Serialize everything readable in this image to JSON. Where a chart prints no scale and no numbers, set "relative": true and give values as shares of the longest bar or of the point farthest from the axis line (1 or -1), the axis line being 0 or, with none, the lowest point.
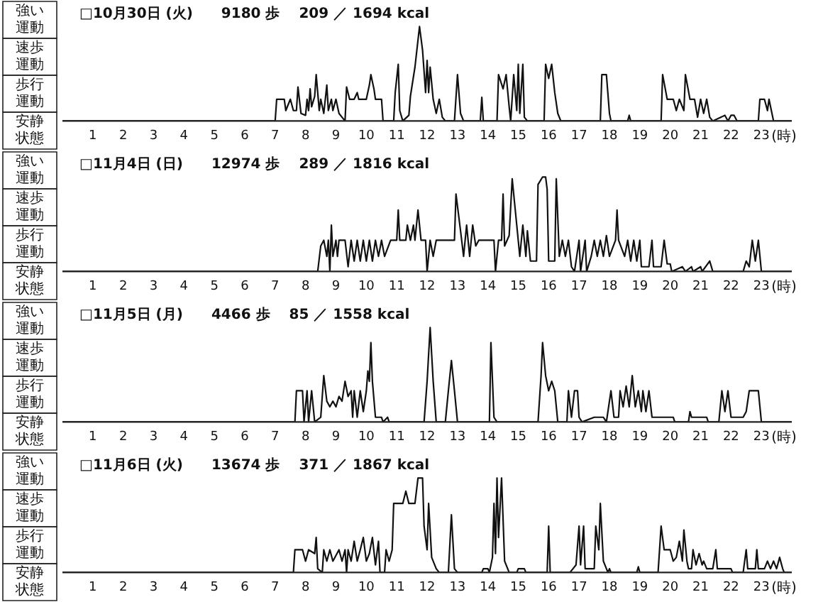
{
  "chart_data": [
    {
      "type": "line",
      "relative": true,
      "title": "□10月30日 (火)　　9180 歩　 209 ／ 1694 kcal",
      "xlabel": "(時)",
      "annotations": [
        "強い運動",
        "速歩運動",
        "歩行運動",
        "安静状態"
      ],
      "color": "#111111",
      "marker": "none",
      "line_style": "solid",
      "xlim": [
        0,
        24
      ],
      "xticks": [
        1,
        2,
        3,
        4,
        5,
        6,
        7,
        8,
        9,
        10,
        11,
        12,
        13,
        14,
        15,
        16,
        17,
        18,
        19,
        20,
        21,
        22,
        23
      ],
      "x": [
        0,
        7.0,
        7.05,
        7.3,
        7.35,
        7.5,
        7.6,
        7.7,
        7.75,
        7.85,
        8.0,
        8.05,
        8.1,
        8.15,
        8.2,
        8.3,
        8.35,
        8.45,
        8.5,
        8.6,
        8.7,
        8.75,
        8.85,
        8.9,
        9.0,
        9.1,
        9.2,
        9.3,
        9.35,
        9.45,
        9.6,
        9.7,
        9.75,
        10.0,
        10.1,
        10.15,
        10.25,
        10.3,
        10.5,
        10.55,
        10.9,
        10.95,
        11.05,
        11.1,
        11.2,
        11.4,
        11.45,
        11.6,
        11.75,
        11.85,
        11.95,
        12.0,
        12.05,
        12.1,
        12.2,
        12.3,
        12.4,
        12.5,
        12.6,
        12.9,
        13.0,
        13.1,
        13.2,
        13.75,
        13.8,
        13.85,
        14.3,
        14.35,
        14.5,
        14.6,
        14.7,
        14.75,
        14.85,
        14.95,
        15.0,
        15.05,
        15.15,
        15.2,
        15.3,
        15.85,
        15.9,
        16.0,
        16.1,
        16.2,
        16.3,
        16.4,
        17.7,
        17.75,
        17.9,
        18.0,
        18.05,
        18.6,
        18.65,
        18.7,
        19.7,
        19.75,
        19.9,
        20.1,
        20.2,
        20.3,
        20.45,
        20.5,
        20.65,
        20.8,
        20.9,
        21.0,
        21.1,
        21.2,
        21.3,
        21.4,
        21.8,
        21.9,
        22.0,
        22.1,
        22.2,
        22.9,
        22.95,
        23.1,
        23.2,
        23.25,
        23.4,
        24
      ],
      "values": [
        0,
        0,
        0.23,
        0.23,
        0.11,
        0.23,
        0.11,
        0.11,
        0.36,
        0.08,
        0.06,
        0.23,
        0.11,
        0.34,
        0.15,
        0.26,
        0.49,
        0.11,
        0.23,
        0.08,
        0.38,
        0.11,
        0.23,
        0.11,
        0.23,
        0.08,
        0.04,
        0,
        0.36,
        0.23,
        0.23,
        0.3,
        0.23,
        0.23,
        0.38,
        0.49,
        0.34,
        0.23,
        0.23,
        0,
        0,
        0.3,
        0.6,
        0.11,
        0,
        0.06,
        0.26,
        0.57,
        1,
        0.75,
        0.3,
        0.64,
        0.3,
        0.57,
        0.23,
        0.08,
        0.23,
        0.04,
        0,
        0,
        0.49,
        0.08,
        0,
        0,
        0.25,
        0,
        0,
        0.49,
        0.34,
        0.49,
        0.15,
        0,
        0.49,
        0.11,
        0.6,
        0.08,
        0.6,
        0.04,
        0,
        0,
        0.6,
        0.45,
        0.6,
        0.3,
        0.08,
        0,
        0,
        0.49,
        0.49,
        0.08,
        0,
        0,
        0.06,
        0,
        0,
        0.49,
        0.23,
        0.23,
        0.11,
        0.23,
        0.11,
        0.49,
        0.23,
        0.23,
        0.04,
        0.23,
        0.08,
        0.23,
        0.04,
        0,
        0.06,
        0,
        0.06,
        0.06,
        0,
        0,
        0.23,
        0.23,
        0.11,
        0.23,
        0,
        0
      ]
    },
    {
      "type": "line",
      "relative": true,
      "title": "□11月4日 (日)　　12974 歩　 289 ／ 1816 kcal",
      "xlabel": "(時)",
      "annotations": [
        "強い運動",
        "速歩運動",
        "歩行運動",
        "安静状態"
      ],
      "color": "#111111",
      "marker": "none",
      "line_style": "solid",
      "xlim": [
        0,
        24
      ],
      "xticks": [
        1,
        2,
        3,
        4,
        5,
        6,
        7,
        8,
        9,
        10,
        11,
        12,
        13,
        14,
        15,
        16,
        17,
        18,
        19,
        20,
        21,
        22,
        23
      ],
      "x": [
        0,
        8.4,
        8.5,
        8.6,
        8.7,
        8.75,
        8.8,
        8.85,
        8.9,
        9.0,
        9.05,
        9.1,
        9.3,
        9.4,
        9.5,
        9.6,
        9.7,
        9.8,
        9.9,
        10.0,
        10.1,
        10.2,
        10.3,
        10.4,
        10.5,
        10.6,
        10.8,
        11.0,
        11.05,
        11.1,
        11.3,
        11.35,
        11.45,
        11.55,
        11.6,
        11.7,
        11.8,
        11.95,
        12.0,
        12.1,
        12.2,
        12.3,
        12.9,
        12.95,
        13.1,
        13.2,
        13.3,
        13.4,
        13.5,
        13.6,
        13.7,
        14.2,
        14.25,
        14.35,
        14.45,
        14.5,
        14.55,
        14.7,
        14.8,
        14.95,
        15.05,
        15.15,
        15.25,
        15.3,
        15.4,
        15.6,
        15.65,
        15.8,
        15.9,
        15.95,
        16.0,
        16.2,
        16.25,
        16.35,
        16.45,
        16.55,
        16.65,
        16.75,
        16.85,
        17.0,
        17.05,
        17.2,
        17.25,
        17.4,
        17.5,
        17.6,
        17.7,
        17.8,
        17.9,
        18.0,
        18.2,
        18.25,
        18.3,
        18.5,
        18.6,
        18.7,
        18.8,
        18.9,
        19.0,
        19.05,
        19.3,
        19.4,
        19.45,
        19.7,
        19.8,
        19.9,
        20.0,
        20.05,
        20.4,
        20.5,
        20.7,
        20.75,
        21.0,
        21.05,
        21.3,
        21.4,
        22.4,
        22.5,
        22.6,
        22.7,
        22.8,
        22.9,
        23.0,
        24
      ],
      "values": [
        0,
        0,
        0.27,
        0.33,
        0.16,
        0.33,
        0,
        0.49,
        0.16,
        0.33,
        0.16,
        0.33,
        0.33,
        0.05,
        0.33,
        0.11,
        0.33,
        0.11,
        0.33,
        0.11,
        0.33,
        0.11,
        0.33,
        0.16,
        0.33,
        0.16,
        0.33,
        0.33,
        0.65,
        0.33,
        0.33,
        0.49,
        0.33,
        0.49,
        0.33,
        0.65,
        0.33,
        0.33,
        0,
        0.33,
        0.16,
        0.33,
        0.33,
        0.82,
        0.43,
        0.16,
        0.49,
        0.16,
        0.49,
        0.27,
        0.33,
        0.33,
        0,
        0.33,
        0.33,
        0.82,
        0.27,
        0.38,
        0.98,
        0.49,
        0.16,
        0.49,
        0.16,
        0.43,
        0.11,
        0.11,
        0.92,
        1,
        1,
        0.87,
        0.11,
        0.11,
        0.98,
        0.16,
        0.33,
        0.16,
        0.33,
        0.05,
        0,
        0.33,
        0,
        0.33,
        0,
        0.16,
        0.33,
        0.16,
        0.33,
        0.16,
        0.38,
        0.16,
        0.33,
        0.65,
        0.33,
        0.16,
        0.33,
        0.11,
        0.33,
        0.11,
        0.33,
        0.05,
        0.05,
        0.33,
        0.05,
        0.05,
        0.33,
        0.08,
        0.08,
        0,
        0.05,
        0,
        0.05,
        0,
        0.05,
        0,
        0.11,
        0,
        0,
        0.11,
        0.05,
        0.33,
        0.11,
        0.33,
        0,
        0
      ]
    },
    {
      "type": "line",
      "relative": true,
      "title": "□11月5日 (月)　　4466 歩　 85 ／ 1558 kcal",
      "xlabel": "(時)",
      "annotations": [
        "強い運動",
        "速歩運動",
        "歩行運動",
        "安静状態"
      ],
      "color": "#111111",
      "marker": "none",
      "line_style": "solid",
      "xlim": [
        0,
        24
      ],
      "xticks": [
        1,
        2,
        3,
        4,
        5,
        6,
        7,
        8,
        9,
        10,
        11,
        12,
        13,
        14,
        15,
        16,
        17,
        18,
        19,
        20,
        21,
        22,
        23
      ],
      "x": [
        0,
        7.65,
        7.7,
        7.9,
        7.95,
        8.05,
        8.1,
        8.2,
        8.3,
        8.5,
        8.6,
        8.7,
        8.8,
        8.9,
        9.0,
        9.1,
        9.2,
        9.3,
        9.4,
        9.5,
        9.55,
        9.6,
        9.7,
        9.8,
        9.9,
        10.0,
        10.05,
        10.1,
        10.15,
        10.2,
        10.3,
        10.5,
        10.55,
        10.7,
        10.75,
        11.9,
        12.0,
        12.1,
        12.2,
        12.3,
        12.6,
        12.7,
        12.8,
        12.9,
        13.0,
        14.05,
        14.1,
        14.2,
        14.3,
        15.65,
        15.75,
        15.8,
        15.9,
        16.0,
        16.1,
        16.2,
        16.3,
        16.6,
        16.65,
        16.75,
        16.85,
        16.95,
        17.0,
        17.1,
        17.5,
        17.8,
        17.9,
        18.05,
        18.15,
        18.3,
        18.35,
        18.45,
        18.55,
        18.65,
        18.75,
        18.85,
        18.95,
        19.05,
        19.1,
        19.2,
        19.3,
        19.4,
        19.6,
        20.1,
        20.15,
        20.6,
        20.65,
        20.7,
        21.2,
        21.25,
        21.6,
        21.7,
        21.8,
        21.9,
        22.0,
        22.4,
        22.5,
        22.6,
        22.9,
        23.0,
        24
      ],
      "values": [
        0,
        0,
        0.33,
        0.33,
        0,
        0.33,
        0,
        0.33,
        0,
        0.05,
        0.49,
        0.22,
        0.16,
        0.22,
        0.16,
        0.27,
        0.22,
        0.43,
        0.27,
        0.33,
        0.05,
        0.33,
        0.05,
        0.33,
        0.11,
        0.33,
        0.54,
        0.43,
        0.84,
        0.43,
        0.05,
        0.05,
        0,
        0.05,
        0,
        0,
        0.43,
        1,
        0.43,
        0,
        0,
        0.33,
        0.65,
        0.33,
        0,
        0,
        0.84,
        0.05,
        0,
        0,
        0.49,
        0.84,
        0.49,
        0.33,
        0.43,
        0.33,
        0,
        0,
        0.33,
        0.05,
        0.33,
        0.33,
        0.05,
        0,
        0.05,
        0.05,
        0,
        0.33,
        0.05,
        0.05,
        0.33,
        0.16,
        0.38,
        0.16,
        0.49,
        0.16,
        0.33,
        0.11,
        0.33,
        0.11,
        0.33,
        0.05,
        0.05,
        0.05,
        0,
        0,
        0.11,
        0.05,
        0.05,
        0,
        0,
        0.33,
        0.11,
        0.33,
        0.05,
        0.05,
        0.11,
        0.33,
        0.33,
        0,
        0
      ]
    },
    {
      "type": "line",
      "relative": true,
      "title": "□11月6日 (火)　　13674 歩　 371 ／ 1867 kcal",
      "xlabel": "(時)",
      "annotations": [
        "強い運動",
        "速歩運動",
        "歩行運動",
        "安静状態"
      ],
      "color": "#111111",
      "marker": "none",
      "line_style": "solid",
      "xlim": [
        0,
        24
      ],
      "xticks": [
        1,
        2,
        3,
        4,
        5,
        6,
        7,
        8,
        9,
        10,
        11,
        12,
        13,
        14,
        15,
        16,
        17,
        18,
        19,
        20,
        21,
        22,
        23
      ],
      "x": [
        0,
        7.6,
        7.65,
        7.9,
        8.0,
        8.1,
        8.3,
        8.35,
        8.4,
        8.55,
        8.6,
        8.7,
        8.8,
        8.9,
        9.1,
        9.2,
        9.3,
        9.35,
        9.4,
        9.5,
        9.6,
        9.7,
        9.8,
        9.9,
        10.0,
        10.1,
        10.2,
        10.3,
        10.4,
        10.45,
        10.6,
        10.65,
        10.75,
        10.85,
        10.9,
        11.2,
        11.3,
        11.4,
        11.6,
        11.7,
        11.85,
        11.9,
        12.0,
        12.05,
        12.15,
        12.3,
        12.4,
        12.7,
        12.8,
        12.9,
        13.0,
        13.8,
        13.85,
        14.0,
        14.05,
        14.15,
        14.2,
        14.25,
        14.3,
        14.35,
        14.45,
        14.55,
        14.7,
        14.95,
        15.0,
        15.2,
        15.25,
        15.95,
        16.0,
        16.05,
        16.7,
        16.8,
        16.9,
        17.0,
        17.05,
        17.15,
        17.2,
        17.5,
        17.55,
        17.65,
        17.7,
        17.8,
        17.95,
        18.0,
        18.05,
        18.9,
        18.95,
        19.0,
        19.6,
        19.7,
        19.8,
        20.0,
        20.1,
        20.2,
        20.3,
        20.4,
        20.45,
        20.55,
        20.6,
        20.7,
        20.75,
        20.85,
        20.95,
        21.05,
        21.1,
        21.2,
        21.4,
        21.5,
        21.55,
        22.0,
        22.05,
        22.4,
        22.5,
        22.55,
        22.8,
        22.85,
        22.9,
        23.1,
        23.2,
        23.3,
        23.4,
        23.5,
        23.6,
        23.7,
        23.75,
        24
      ],
      "values": [
        0,
        0,
        0.24,
        0.24,
        0.12,
        0.24,
        0.2,
        0.37,
        0.04,
        0,
        0.24,
        0.12,
        0.24,
        0.12,
        0.24,
        0.12,
        0.24,
        0,
        0.24,
        0.12,
        0.33,
        0.12,
        0.24,
        0.37,
        0.12,
        0.2,
        0.37,
        0.08,
        0.33,
        0,
        0,
        0.24,
        0.12,
        0.24,
        0.73,
        0.73,
        0.86,
        0.73,
        0.73,
        1,
        1,
        0.49,
        0.24,
        0.73,
        0.16,
        0.04,
        0,
        0,
        0.61,
        0.04,
        0,
        0,
        0.04,
        0.04,
        0,
        0.16,
        0.73,
        0.2,
        1,
        0.37,
        1,
        0.12,
        0,
        0,
        0.04,
        0.04,
        0,
        0,
        0.49,
        0,
        0,
        0.04,
        0.08,
        0.49,
        0.08,
        0.49,
        0.04,
        0.04,
        0.49,
        0.24,
        0.73,
        0.12,
        0,
        0.04,
        0,
        0,
        0.06,
        0,
        0,
        0.49,
        0.24,
        0.24,
        0.12,
        0.16,
        0.33,
        0.12,
        0.45,
        0.12,
        0.04,
        0.04,
        0.24,
        0.08,
        0.2,
        0.08,
        0.12,
        0.04,
        0.04,
        0.24,
        0.04,
        0.04,
        0,
        0,
        0.24,
        0.04,
        0.04,
        0.24,
        0.04,
        0.04,
        0.12,
        0.04,
        0.12,
        0.04,
        0.16,
        0.04,
        0,
        0
      ]
    }
  ]
}
